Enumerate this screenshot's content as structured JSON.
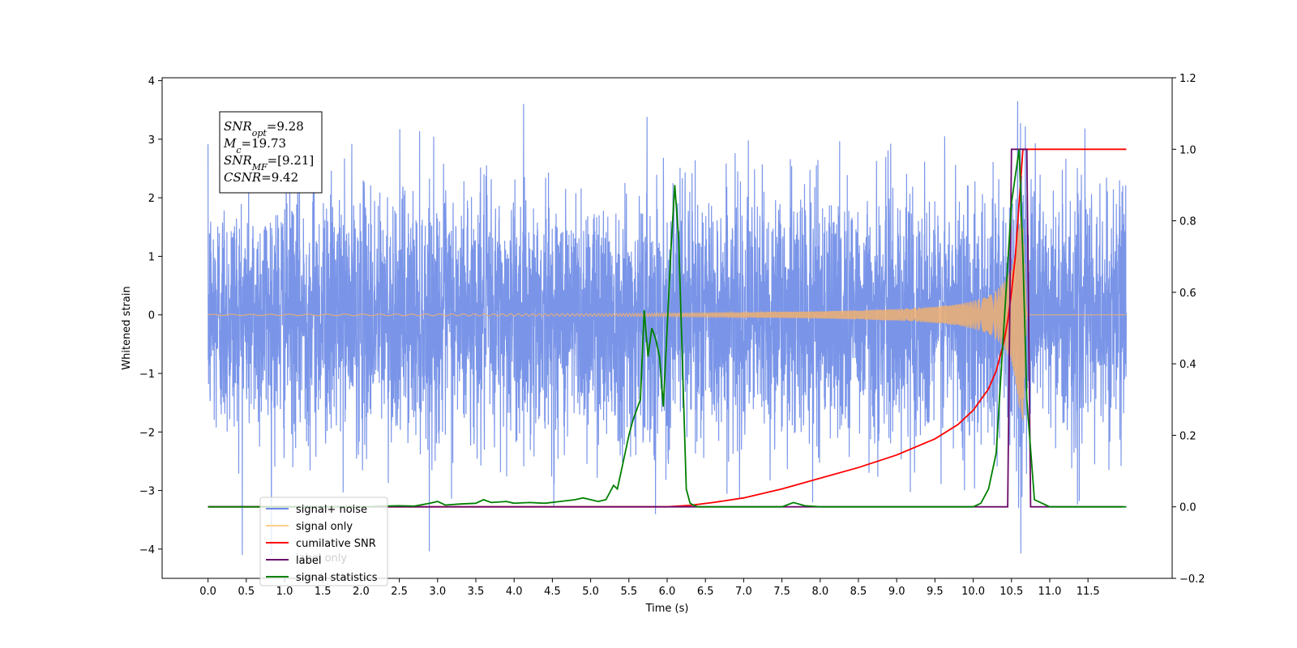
{
  "chart_data": {
    "type": "line",
    "xlabel": "Time (s)",
    "ylabel": "Whitened strain",
    "xlim": [
      -0.6,
      12.6
    ],
    "ylim_left": [
      -4.5,
      4.05
    ],
    "ylim_right": [
      -0.2,
      1.2
    ],
    "x_ticks": [
      "0.0",
      "0.5",
      "1.0",
      "1.5",
      "2.0",
      "2.5",
      "3.0",
      "3.5",
      "4.0",
      "4.5",
      "5.0",
      "5.5",
      "6.0",
      "6.5",
      "7.0",
      "7.5",
      "8.0",
      "8.5",
      "9.0",
      "9.5",
      "10.0",
      "10.5",
      "11.0",
      "11.5"
    ],
    "y_ticks_left": [
      "4",
      "3",
      "2",
      "1",
      "0",
      "−1",
      "−2",
      "−3",
      "−4"
    ],
    "y_ticks_right": [
      "1.2",
      "1.0",
      "0.8",
      "0.6",
      "0.4",
      "0.2",
      "0.0",
      "−0.2"
    ],
    "legend": {
      "position": "lower-left",
      "entries": [
        {
          "label": "signal+ noise",
          "color": "#6b8ae6"
        },
        {
          "label": "signal only",
          "color": "#ffcf87"
        },
        {
          "label": "cumilative SNR",
          "color": "#ff0000"
        },
        {
          "label": "label",
          "color": "#6a0a6a"
        },
        {
          "label": "signal statistics",
          "color": "#008000"
        }
      ],
      "occluded_text": "label only"
    },
    "annotation": {
      "lines": [
        {
          "main": "SNR",
          "sub": "opt",
          "rest": "=9.28"
        },
        {
          "main": "M",
          "sub": "c",
          "rest": "=19.73"
        },
        {
          "main": "SNR",
          "sub": "MF",
          "rest": "=[9.21]"
        },
        {
          "main": "CSNR",
          "sub": "",
          "rest": "=9.42"
        }
      ]
    },
    "series": [
      {
        "name": "signal+ noise",
        "axis": "left",
        "color": "#6b8ae6",
        "description": "whitened strain noise plus signal, about 2.4 std, 0 to 12 s",
        "x_range": [
          0,
          12
        ]
      },
      {
        "name": "signal only",
        "axis": "left",
        "color": "#f0b070",
        "description": "chirp with growing amplitude, merger near 10.65 s",
        "envelope_x": [
          0,
          5,
          7,
          8,
          8.5,
          9,
          9.5,
          9.8,
          10.0,
          10.2,
          10.3,
          10.4,
          10.5,
          10.55,
          10.6,
          10.65,
          10.7,
          12
        ],
        "envelope_y": [
          0.01,
          0.02,
          0.04,
          0.06,
          0.08,
          0.1,
          0.14,
          0.18,
          0.24,
          0.32,
          0.42,
          0.56,
          0.8,
          1.1,
          1.6,
          1.8,
          0,
          0
        ]
      },
      {
        "name": "cumilative SNR",
        "axis": "right",
        "color": "#ff0000",
        "x": [
          0,
          6.0,
          6.3,
          6.6,
          7.0,
          7.5,
          8.0,
          8.5,
          9.0,
          9.5,
          9.8,
          10.0,
          10.2,
          10.3,
          10.4,
          10.45,
          10.5,
          10.55,
          10.6,
          10.65,
          11.0,
          12.0
        ],
        "y": [
          0,
          0,
          0.004,
          0.012,
          0.025,
          0.05,
          0.08,
          0.11,
          0.145,
          0.19,
          0.23,
          0.27,
          0.33,
          0.38,
          0.46,
          0.52,
          0.6,
          0.7,
          0.85,
          1.0,
          1.0,
          1.0
        ]
      },
      {
        "name": "label",
        "axis": "right",
        "color": "#6a0a6a",
        "x": [
          0,
          10.45,
          10.5,
          10.7,
          10.75,
          11.95
        ],
        "y": [
          0,
          0,
          1.0,
          1.0,
          0,
          0
        ]
      },
      {
        "name": "signal statistics",
        "axis": "right",
        "color": "#008000",
        "x": [
          0,
          0.5,
          1.0,
          1.5,
          2.0,
          2.3,
          2.5,
          2.7,
          2.9,
          3.0,
          3.1,
          3.3,
          3.5,
          3.6,
          3.7,
          3.9,
          4.0,
          4.2,
          4.4,
          4.6,
          4.8,
          4.9,
          5.0,
          5.1,
          5.2,
          5.3,
          5.35,
          5.4,
          5.45,
          5.5,
          5.55,
          5.6,
          5.65,
          5.7,
          5.75,
          5.8,
          5.85,
          5.9,
          5.95,
          6.0,
          6.05,
          6.1,
          6.15,
          6.2,
          6.25,
          6.3,
          6.35,
          6.4,
          7.0,
          7.5,
          7.65,
          7.8,
          8.0,
          9.0,
          10.0,
          10.1,
          10.2,
          10.3,
          10.4,
          10.5,
          10.6,
          10.65,
          10.7,
          10.8,
          11.0,
          12.0
        ],
        "y": [
          0,
          0,
          0,
          0,
          0,
          0.002,
          0.003,
          0.002,
          0.01,
          0.015,
          0.005,
          0.008,
          0.01,
          0.02,
          0.012,
          0.015,
          0.01,
          0.012,
          0.01,
          0.015,
          0.02,
          0.025,
          0.02,
          0.015,
          0.02,
          0.06,
          0.05,
          0.1,
          0.15,
          0.2,
          0.24,
          0.27,
          0.3,
          0.55,
          0.42,
          0.5,
          0.47,
          0.42,
          0.28,
          0.5,
          0.72,
          0.9,
          0.75,
          0.4,
          0.05,
          0.01,
          0.004,
          0.0,
          0.0,
          0.0,
          0.012,
          0.003,
          0.0,
          0.0,
          0.0,
          0.01,
          0.05,
          0.15,
          0.5,
          0.85,
          1.0,
          0.7,
          0.3,
          0.02,
          0.0,
          0.0
        ]
      }
    ]
  }
}
